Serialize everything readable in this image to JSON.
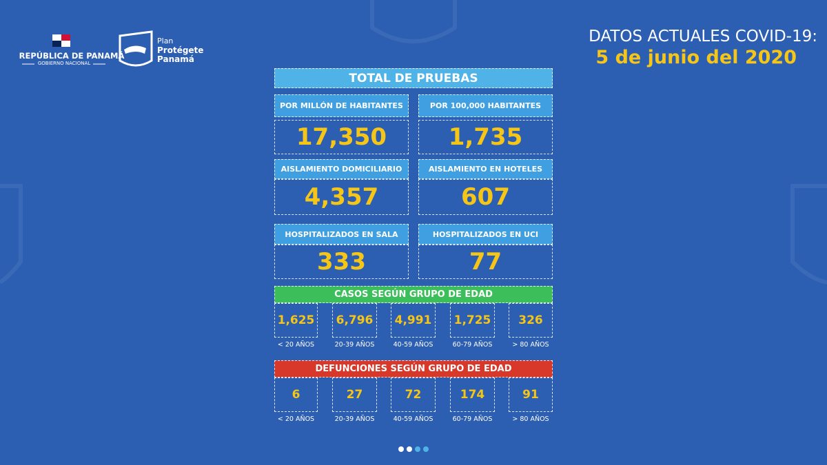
{
  "header": {
    "country": "REPÚBLICA DE PANAMÁ",
    "government": "GOBIERNO NACIONAL",
    "plan": {
      "line1": "Plan",
      "line2": "Protégete",
      "line3": "Panamá"
    },
    "title": "DATOS ACTUALES COVID-19:",
    "date": "5 de junio del 2020"
  },
  "tests": {
    "title": "TOTAL DE PRUEBAS",
    "cards": [
      {
        "label": "POR MILLÓN DE HABITANTES",
        "value": "17,350"
      },
      {
        "label": "POR 100,000 HABITANTES",
        "value": "1,735"
      },
      {
        "label": "AISLAMIENTO DOMICILIARIO",
        "value": "4,357"
      },
      {
        "label": "AISLAMIENTO EN HOTELES",
        "value": "607"
      },
      {
        "label": "HOSPITALIZADOS EN SALA",
        "value": "333"
      },
      {
        "label": "HOSPITALIZADOS EN UCI",
        "value": "77"
      }
    ]
  },
  "cases_by_age": {
    "title": "CASOS SEGÚN GRUPO DE EDAD",
    "groups": [
      {
        "value": "1,625",
        "label": "< 20 AÑOS"
      },
      {
        "value": "6,796",
        "label": "20-39 AÑOS"
      },
      {
        "value": "4,991",
        "label": "40-59 AÑOS"
      },
      {
        "value": "1,725",
        "label": "60-79 AÑOS"
      },
      {
        "value": "326",
        "label": "> 80 AÑOS"
      }
    ]
  },
  "deaths_by_age": {
    "title": "DEFUNCIONES SEGÚN GRUPO DE EDAD",
    "groups": [
      {
        "value": "6",
        "label": "< 20 AÑOS"
      },
      {
        "value": "27",
        "label": "20-39 AÑOS"
      },
      {
        "value": "72",
        "label": "40-59 AÑOS"
      },
      {
        "value": "174",
        "label": "60-79 AÑOS"
      },
      {
        "value": "91",
        "label": "> 80 AÑOS"
      }
    ]
  }
}
